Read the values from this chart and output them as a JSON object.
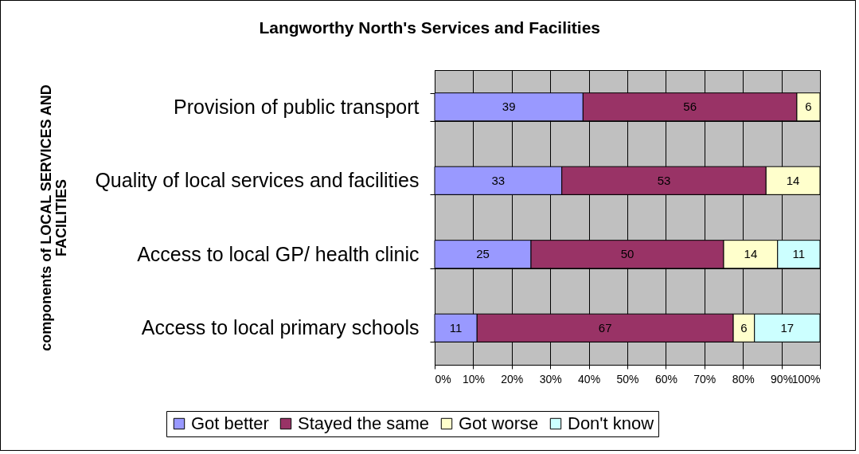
{
  "chart_data": {
    "type": "bar",
    "orientation": "horizontal",
    "stacked": true,
    "title": "Langworthy North's Services and Facilities",
    "ylabel": "components of LOCAL SERVICES AND FACILITIES",
    "categories": [
      "Provision of public transport",
      "Quality of local services and facilities",
      "Access to local GP/ health clinic",
      "Access to local primary schools"
    ],
    "series": [
      {
        "name": "Got better",
        "color": "#9999ff",
        "values": [
          38.5,
          33,
          25,
          11
        ],
        "value_labels": [
          "39",
          "33",
          "25",
          "11"
        ]
      },
      {
        "name": "Stayed the same",
        "color": "#993366",
        "values": [
          55.5,
          53,
          50,
          66.5
        ],
        "value_labels": [
          "56",
          "53",
          "50",
          "67"
        ]
      },
      {
        "name": "Got worse",
        "color": "#ffffcc",
        "values": [
          6,
          14,
          14,
          5.5
        ],
        "value_labels": [
          "6",
          "14",
          "14",
          "6"
        ]
      },
      {
        "name": "Don't know",
        "color": "#ccffff",
        "values": [
          null,
          null,
          11,
          17
        ],
        "value_labels": [
          null,
          null,
          "11",
          "17"
        ]
      }
    ],
    "xlim": [
      0,
      100
    ],
    "xticks": [
      {
        "value": 0,
        "label": "0%"
      },
      {
        "value": 10,
        "label": "10%"
      },
      {
        "value": 20,
        "label": "20%"
      },
      {
        "value": 30,
        "label": "30%"
      },
      {
        "value": 40,
        "label": "40%"
      },
      {
        "value": 50,
        "label": "50%"
      },
      {
        "value": 60,
        "label": "60%"
      },
      {
        "value": 70,
        "label": "70%"
      },
      {
        "value": 80,
        "label": "80%"
      },
      {
        "value": 90,
        "label": "90%"
      },
      {
        "value": 100,
        "label": "100%"
      }
    ],
    "grid": true,
    "legend": "bottom"
  }
}
